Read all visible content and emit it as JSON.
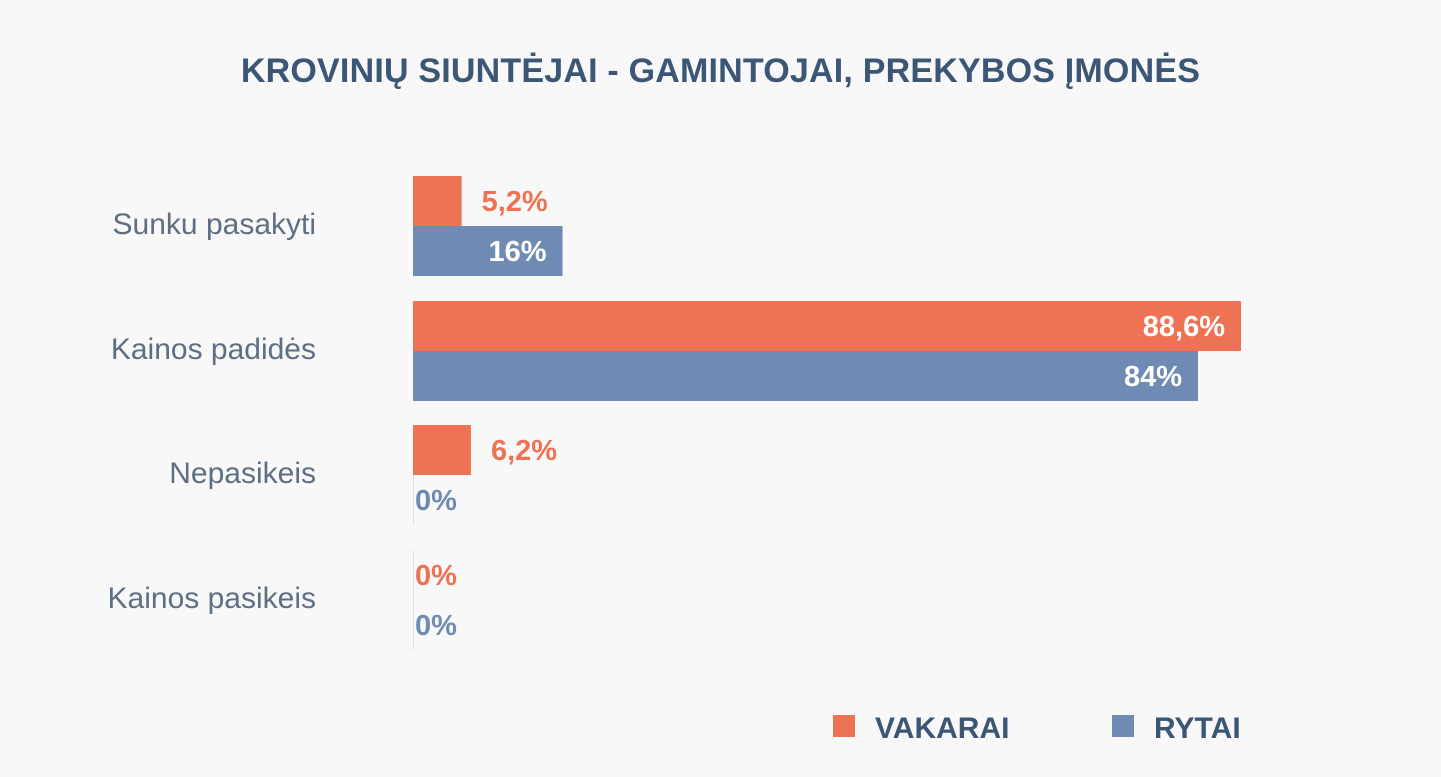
{
  "chart_data": {
    "type": "bar",
    "orientation": "horizontal",
    "title": "KROVINIŲ SIUNTĖJAI - GAMINTOJAI, PREKYBOS ĮMONĖS",
    "categories": [
      "Sunku pasakyti",
      "Kainos padidės",
      "Nepasikeis",
      "Kainos pasikeis"
    ],
    "series": [
      {
        "name": "VAKARAI",
        "color": "#ee7254",
        "values": [
          5.2,
          88.6,
          6.2,
          0
        ],
        "labels": [
          "5,2%",
          "88,6%",
          "6,2%",
          "0%"
        ]
      },
      {
        "name": "RYTAI",
        "color": "#708bb3",
        "values": [
          16,
          84,
          0,
          0
        ],
        "labels": [
          "16%",
          "84%",
          "0%",
          "0%"
        ]
      }
    ],
    "legend": {
      "position": "bottom-right"
    },
    "grid": false
  }
}
